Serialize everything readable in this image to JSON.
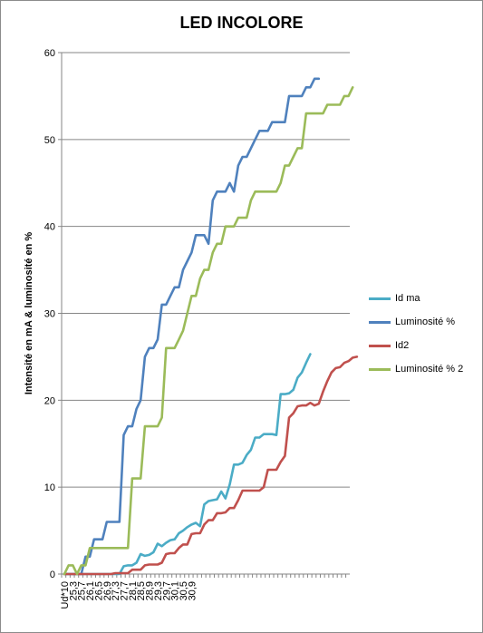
{
  "chart_data": {
    "type": "line",
    "title": "LED INCOLORE",
    "xlabel": "",
    "ylabel": "Intensité en mA & luminosité en %",
    "ylim": [
      0,
      60
    ],
    "yticks": [
      0,
      10,
      20,
      30,
      40,
      50,
      60
    ],
    "grid": true,
    "legend_position": "right",
    "x_tick_labels": [
      "Ud*10",
      "25,3",
      "25,7",
      "26,1",
      "26,5",
      "26,9",
      "27,3",
      "27,7",
      "28,1",
      "28,5",
      "28,9",
      "29,3",
      "29,7",
      "30,1",
      "30,5",
      "30,9"
    ],
    "x_tick_step": 2,
    "series": [
      {
        "name": "Id ma",
        "color": "#4bacc6",
        "values": [
          0,
          0,
          0,
          0,
          0,
          0,
          0,
          0,
          0,
          0,
          0,
          0,
          0,
          0,
          0.9,
          1.0,
          1.0,
          1.3,
          2.3,
          2.1,
          2.2,
          2.5,
          3.5,
          3.2,
          3.6,
          3.9,
          4.0,
          4.7,
          5.0,
          5.4,
          5.7,
          5.9,
          5.5,
          8.0,
          8.4,
          8.5,
          8.6,
          9.5,
          8.7,
          10.3,
          12.6,
          12.6,
          12.8,
          13.7,
          14.3,
          15.7,
          15.7,
          16.1,
          16.1,
          16.1,
          16.0,
          20.7,
          20.7,
          20.8,
          21.2,
          22.6,
          23.2,
          24.3,
          25.3
        ]
      },
      {
        "name": "Luminosité %",
        "color": "#4f81bd",
        "values": [
          0,
          0,
          0,
          0,
          0,
          2,
          2,
          4,
          4,
          4,
          6,
          6,
          6,
          6,
          16,
          17,
          17,
          19,
          20,
          25,
          26,
          26,
          27,
          31,
          31,
          32,
          33,
          33,
          35,
          36,
          37,
          39,
          39,
          39,
          38,
          43,
          44,
          44,
          44,
          45,
          44,
          47,
          48,
          48,
          49,
          50,
          51,
          51,
          51,
          52,
          52,
          52,
          52,
          55,
          55,
          55,
          55,
          56,
          56,
          57,
          57
        ]
      },
      {
        "name": "Id2",
        "color": "#c0504d",
        "values": [
          0,
          0,
          0,
          0,
          0,
          0,
          0,
          0,
          0,
          0,
          0,
          0,
          0.1,
          0.1,
          0.1,
          0.1,
          0.5,
          0.5,
          0.5,
          1.0,
          1.1,
          1.1,
          1.1,
          1.3,
          2.3,
          2.4,
          2.4,
          3.0,
          3.4,
          3.4,
          4.6,
          4.7,
          4.7,
          5.7,
          6.2,
          6.2,
          7.0,
          7.0,
          7.1,
          7.6,
          7.6,
          8.5,
          9.6,
          9.6,
          9.6,
          9.6,
          9.6,
          10.0,
          12.0,
          12.0,
          12.0,
          12.9,
          13.6,
          18.0,
          18.5,
          19.3,
          19.4,
          19.4,
          19.7,
          19.4,
          19.6,
          21.0,
          22.2,
          23.2,
          23.7,
          23.8,
          24.3,
          24.5,
          24.9,
          25.0
        ]
      },
      {
        "name": "Luminosité % 2",
        "color": "#9bbb59",
        "values": [
          0,
          1,
          1,
          0,
          1,
          1,
          3,
          3,
          3,
          3,
          3,
          3,
          3,
          3,
          3,
          3,
          11,
          11,
          11,
          17,
          17,
          17,
          17,
          18,
          26,
          26,
          26,
          27,
          28,
          30,
          32,
          32,
          34,
          35,
          35,
          37,
          38,
          38,
          40,
          40,
          40,
          41,
          41,
          41,
          43,
          44,
          44,
          44,
          44,
          44,
          44,
          45,
          47,
          47,
          48,
          49,
          49,
          53,
          53,
          53,
          53,
          53,
          54,
          54,
          54,
          54,
          55,
          55,
          56
        ]
      }
    ]
  }
}
